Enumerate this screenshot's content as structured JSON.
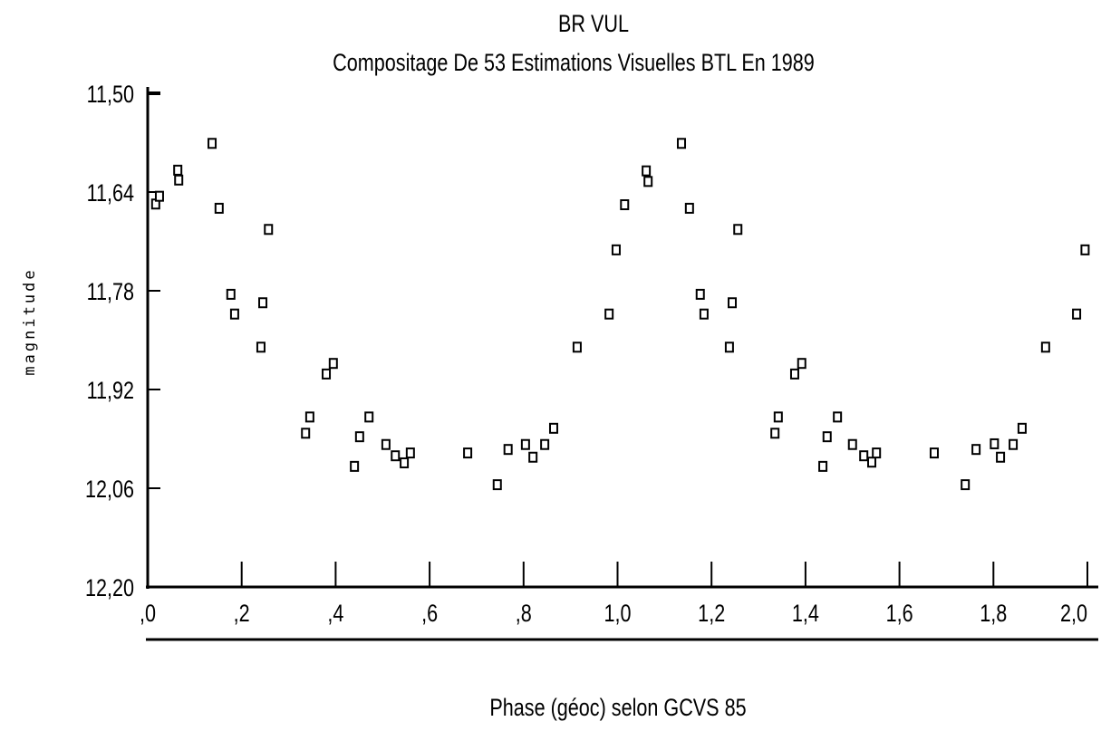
{
  "chart_data": {
    "type": "scatter",
    "title": "BR VUL",
    "subtitle": "Compositage De  53 Estimations Visuelles BTL  En 1989",
    "x_label": "Phase (géoc)  selon GCVS 85",
    "y_label": "magnitude",
    "x": [
      0.017,
      0.025,
      0.064,
      0.066,
      0.137,
      0.152,
      0.177,
      0.185,
      0.241,
      0.245,
      0.257,
      0.336,
      0.345,
      0.38,
      0.395,
      0.44,
      0.451,
      0.471,
      0.507,
      0.527,
      0.546,
      0.559,
      0.681,
      0.744,
      0.767,
      0.804,
      0.82,
      0.845,
      0.864,
      0.914,
      0.982,
      0.997,
      1.015,
      1.061,
      1.065,
      1.136,
      1.153,
      1.176,
      1.184,
      1.238,
      1.244,
      1.256,
      1.335,
      1.342,
      1.377,
      1.392,
      1.437,
      1.446,
      1.468,
      1.5,
      1.524,
      1.541,
      1.551,
      1.674,
      1.74,
      1.763,
      1.802,
      1.815,
      1.842,
      1.861,
      1.911,
      1.977,
      1.995
    ],
    "values": [
      11.657,
      11.646,
      11.609,
      11.623,
      11.571,
      11.663,
      11.785,
      11.813,
      11.86,
      11.797,
      11.693,
      11.982,
      11.959,
      11.898,
      11.883,
      12.029,
      11.987,
      11.959,
      11.998,
      12.014,
      12.024,
      12.01,
      12.01,
      12.055,
      12.005,
      11.998,
      12.016,
      11.998,
      11.975,
      11.86,
      11.813,
      11.722,
      11.658,
      11.61,
      11.625,
      11.571,
      11.663,
      11.785,
      11.813,
      11.86,
      11.797,
      11.693,
      11.982,
      11.959,
      11.898,
      11.883,
      12.029,
      11.987,
      11.959,
      11.998,
      12.014,
      12.023,
      12.01,
      12.01,
      12.055,
      12.005,
      11.997,
      12.016,
      11.998,
      11.975,
      11.86,
      11.813,
      11.722
    ],
    "color": "#000000",
    "xlim": [
      0,
      2.0
    ],
    "ylim": [
      12.2,
      11.5
    ],
    "xticks": [
      {
        "value": 0,
        "label": ",0"
      },
      {
        "value": 0.2,
        "label": ",2"
      },
      {
        "value": 0.4,
        "label": ",4"
      },
      {
        "value": 0.6,
        "label": ",6"
      },
      {
        "value": 0.8,
        "label": ",8"
      },
      {
        "value": 1.0,
        "label": "1,0"
      },
      {
        "value": 1.2,
        "label": "1,2"
      },
      {
        "value": 1.4,
        "label": "1,4"
      },
      {
        "value": 1.6,
        "label": "1,6"
      },
      {
        "value": 1.8,
        "label": "1,8"
      },
      {
        "value": 2.0,
        "label": "2,0"
      }
    ],
    "yticks": [
      {
        "value": 11.5,
        "label": "11,50"
      },
      {
        "value": 11.64,
        "label": "11,64"
      },
      {
        "value": 11.78,
        "label": "11,78"
      },
      {
        "value": 11.92,
        "label": "11,92"
      },
      {
        "value": 12.06,
        "label": "12,06"
      },
      {
        "value": 12.2,
        "label": "12,20"
      }
    ]
  }
}
